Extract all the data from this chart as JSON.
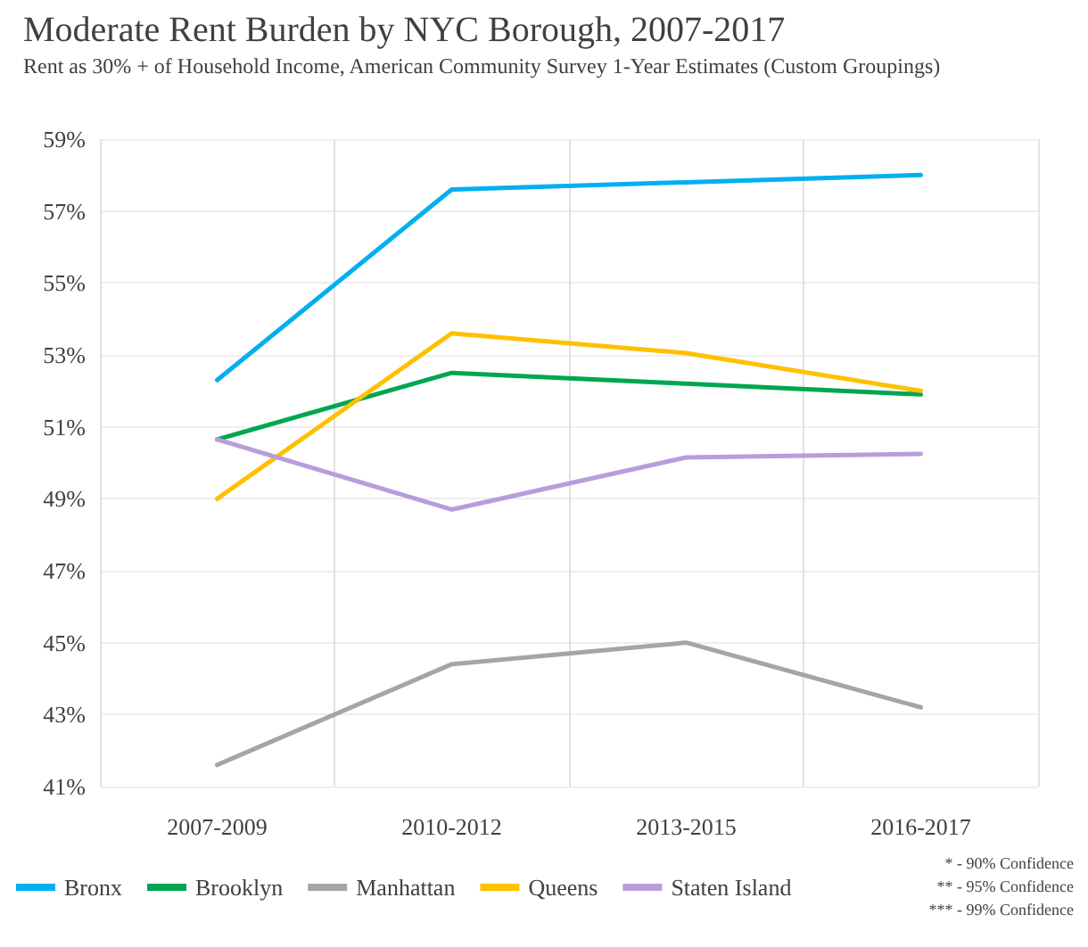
{
  "chart_data": {
    "type": "line",
    "title": "Moderate Rent Burden by NYC Borough, 2007-2017",
    "subtitle": "Rent as 30% + of Household Income, American Community Survey 1-Year Estimates (Custom Groupings)",
    "categories": [
      "2007-2009",
      "2010-2012",
      "2013-2015",
      "2016-2017"
    ],
    "series": [
      {
        "name": "Bronx",
        "color": "#00b0f0",
        "values": [
          52.3,
          57.6,
          57.8,
          58.0
        ]
      },
      {
        "name": "Brooklyn",
        "color": "#00a651",
        "values": [
          50.65,
          52.5,
          52.2,
          51.9
        ]
      },
      {
        "name": "Manhattan",
        "color": "#a5a5a5",
        "values": [
          41.6,
          44.4,
          45.0,
          43.2
        ]
      },
      {
        "name": "Queens",
        "color": "#ffc000",
        "values": [
          49.0,
          53.6,
          53.05,
          52.0
        ]
      },
      {
        "name": "Staten Island",
        "color": "#b89ddb",
        "values": [
          50.65,
          48.7,
          50.15,
          50.25
        ]
      }
    ],
    "ylim": [
      41,
      59
    ],
    "yticks": [
      {
        "value": 41,
        "label": "41%"
      },
      {
        "value": 43,
        "label": "43%"
      },
      {
        "value": 45,
        "label": "45%"
      },
      {
        "value": 47,
        "label": "47%"
      },
      {
        "value": 49,
        "label": "49%"
      },
      {
        "value": 51,
        "label": "51%"
      },
      {
        "value": 53,
        "label": "53%"
      },
      {
        "value": 55,
        "label": "55%"
      },
      {
        "value": 57,
        "label": "57%"
      },
      {
        "value": 59,
        "label": "59%"
      }
    ],
    "grid": true,
    "legend": "bottom left",
    "marker": "none",
    "line_style": "solid",
    "annotations": [
      "* - 90% Confidence",
      "** - 95% Confidence",
      "*** - 99% Confidence"
    ]
  }
}
